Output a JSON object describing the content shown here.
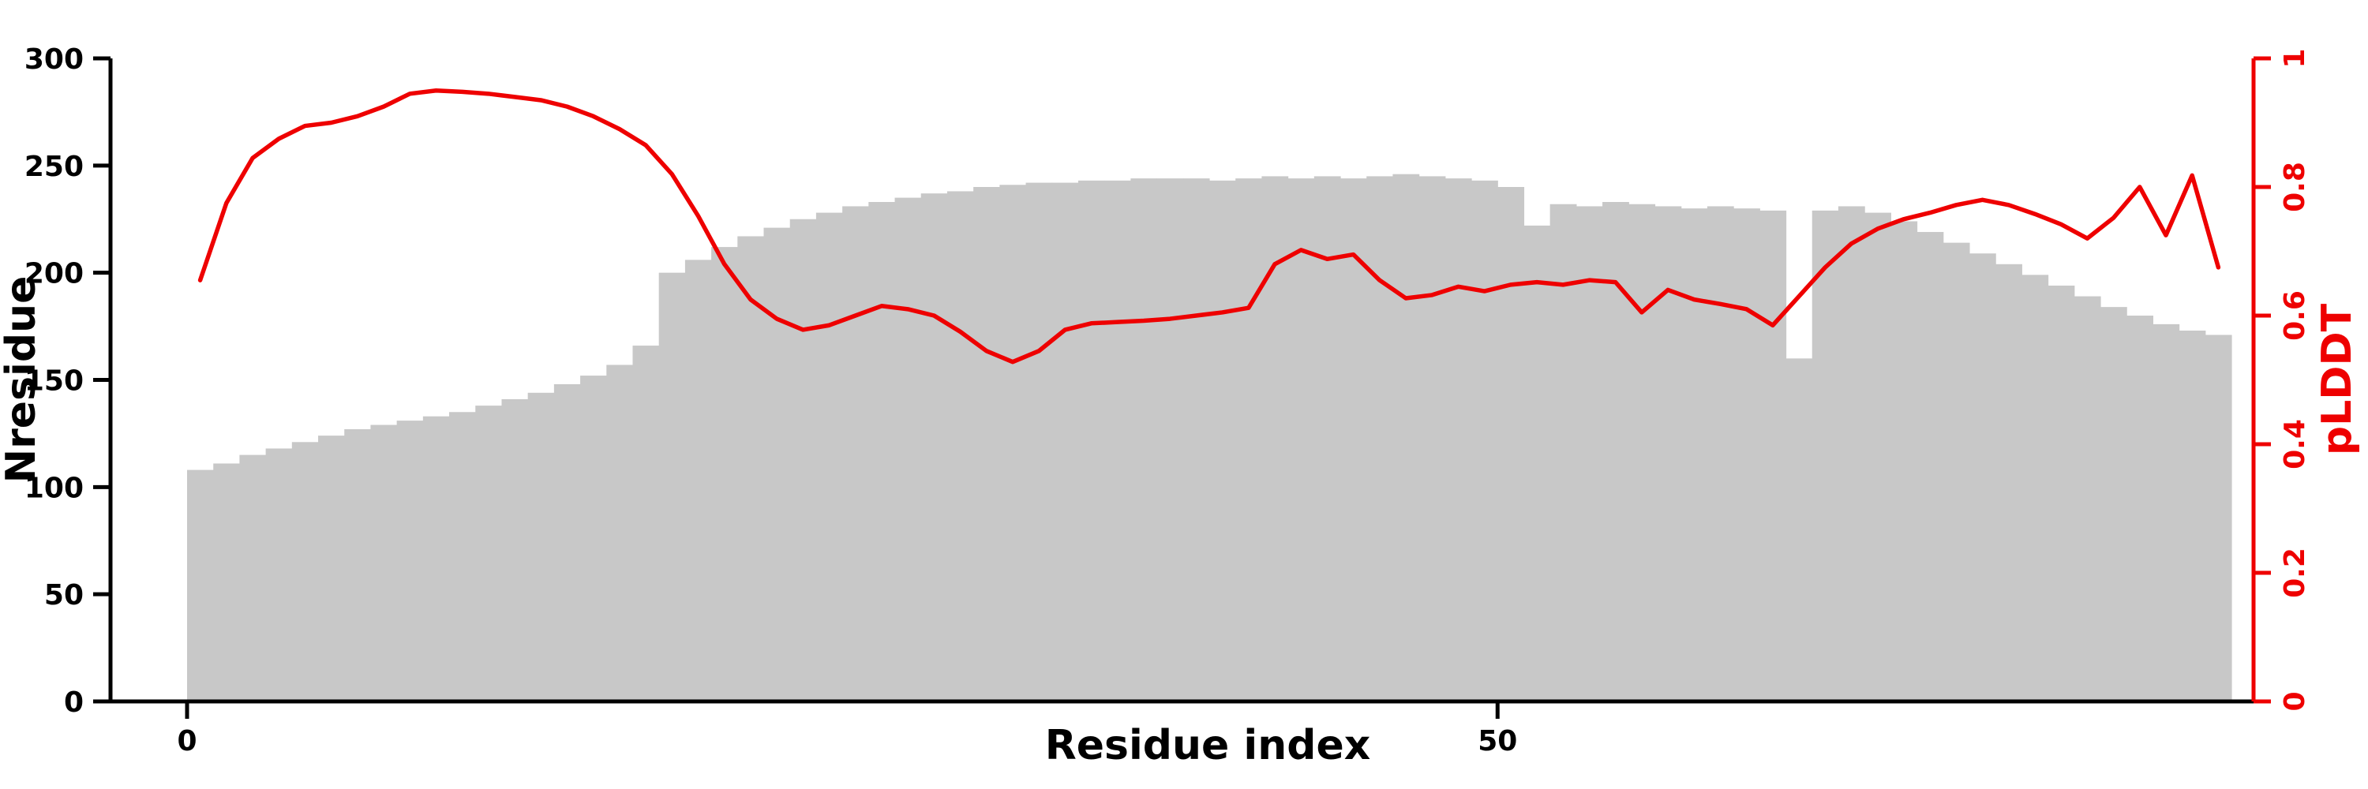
{
  "chart_data": {
    "type": "bar",
    "title": "",
    "xlabel": "Residue index",
    "ylabel_left": "Nresidue",
    "ylabel_right": "pLDDT",
    "ylim_left": [
      0,
      300
    ],
    "ylim_right": [
      0,
      1
    ],
    "xticks": [
      0,
      50
    ],
    "yticks_left": [
      0,
      50,
      100,
      150,
      200,
      250,
      300
    ],
    "yticks_right": [
      0,
      0.2,
      0.4,
      0.6,
      0.8,
      1
    ],
    "grid": false,
    "legend": "none",
    "colors": {
      "bar": "#c8c8c8",
      "line": "#ee0000",
      "left_axis": "#000000",
      "bottom_axis": "#000000",
      "right_axis": "#ee0000"
    },
    "x_start": 1,
    "series": [
      {
        "name": "Nresidue",
        "type": "bar",
        "axis": "left",
        "values": [
          108,
          111,
          115,
          118,
          121,
          124,
          127,
          129,
          131,
          133,
          135,
          138,
          141,
          144,
          148,
          152,
          157,
          166,
          200,
          206,
          212,
          217,
          221,
          225,
          228,
          231,
          233,
          235,
          237,
          238,
          240,
          241,
          242,
          242,
          243,
          243,
          244,
          244,
          244,
          243,
          244,
          245,
          244,
          245,
          244,
          245,
          246,
          245,
          244,
          243,
          240,
          222,
          232,
          231,
          233,
          232,
          231,
          230,
          231,
          230,
          229,
          160,
          229,
          231,
          228,
          224,
          219,
          214,
          209,
          204,
          199,
          194,
          189,
          184,
          180,
          176,
          173,
          171
        ]
      },
      {
        "name": "pLDDT",
        "type": "line",
        "axis": "right",
        "values": [
          0.655,
          0.775,
          0.845,
          0.875,
          0.895,
          0.9,
          0.91,
          0.925,
          0.945,
          0.95,
          0.948,
          0.945,
          0.94,
          0.935,
          0.925,
          0.91,
          0.89,
          0.865,
          0.82,
          0.755,
          0.68,
          0.625,
          0.595,
          0.578,
          0.585,
          0.6,
          0.615,
          0.61,
          0.6,
          0.575,
          0.545,
          0.528,
          0.545,
          0.578,
          0.588,
          0.59,
          0.592,
          0.595,
          0.6,
          0.605,
          0.612,
          0.68,
          0.702,
          0.688,
          0.695,
          0.655,
          0.627,
          0.632,
          0.645,
          0.638,
          0.648,
          0.652,
          0.648,
          0.655,
          0.652,
          0.605,
          0.64,
          0.625,
          0.618,
          0.61,
          0.585,
          0.63,
          0.675,
          0.712,
          0.735,
          0.75,
          0.76,
          0.772,
          0.78,
          0.772,
          0.758,
          0.742,
          0.72,
          0.752,
          0.8,
          0.725,
          0.818,
          0.675
        ]
      }
    ]
  }
}
